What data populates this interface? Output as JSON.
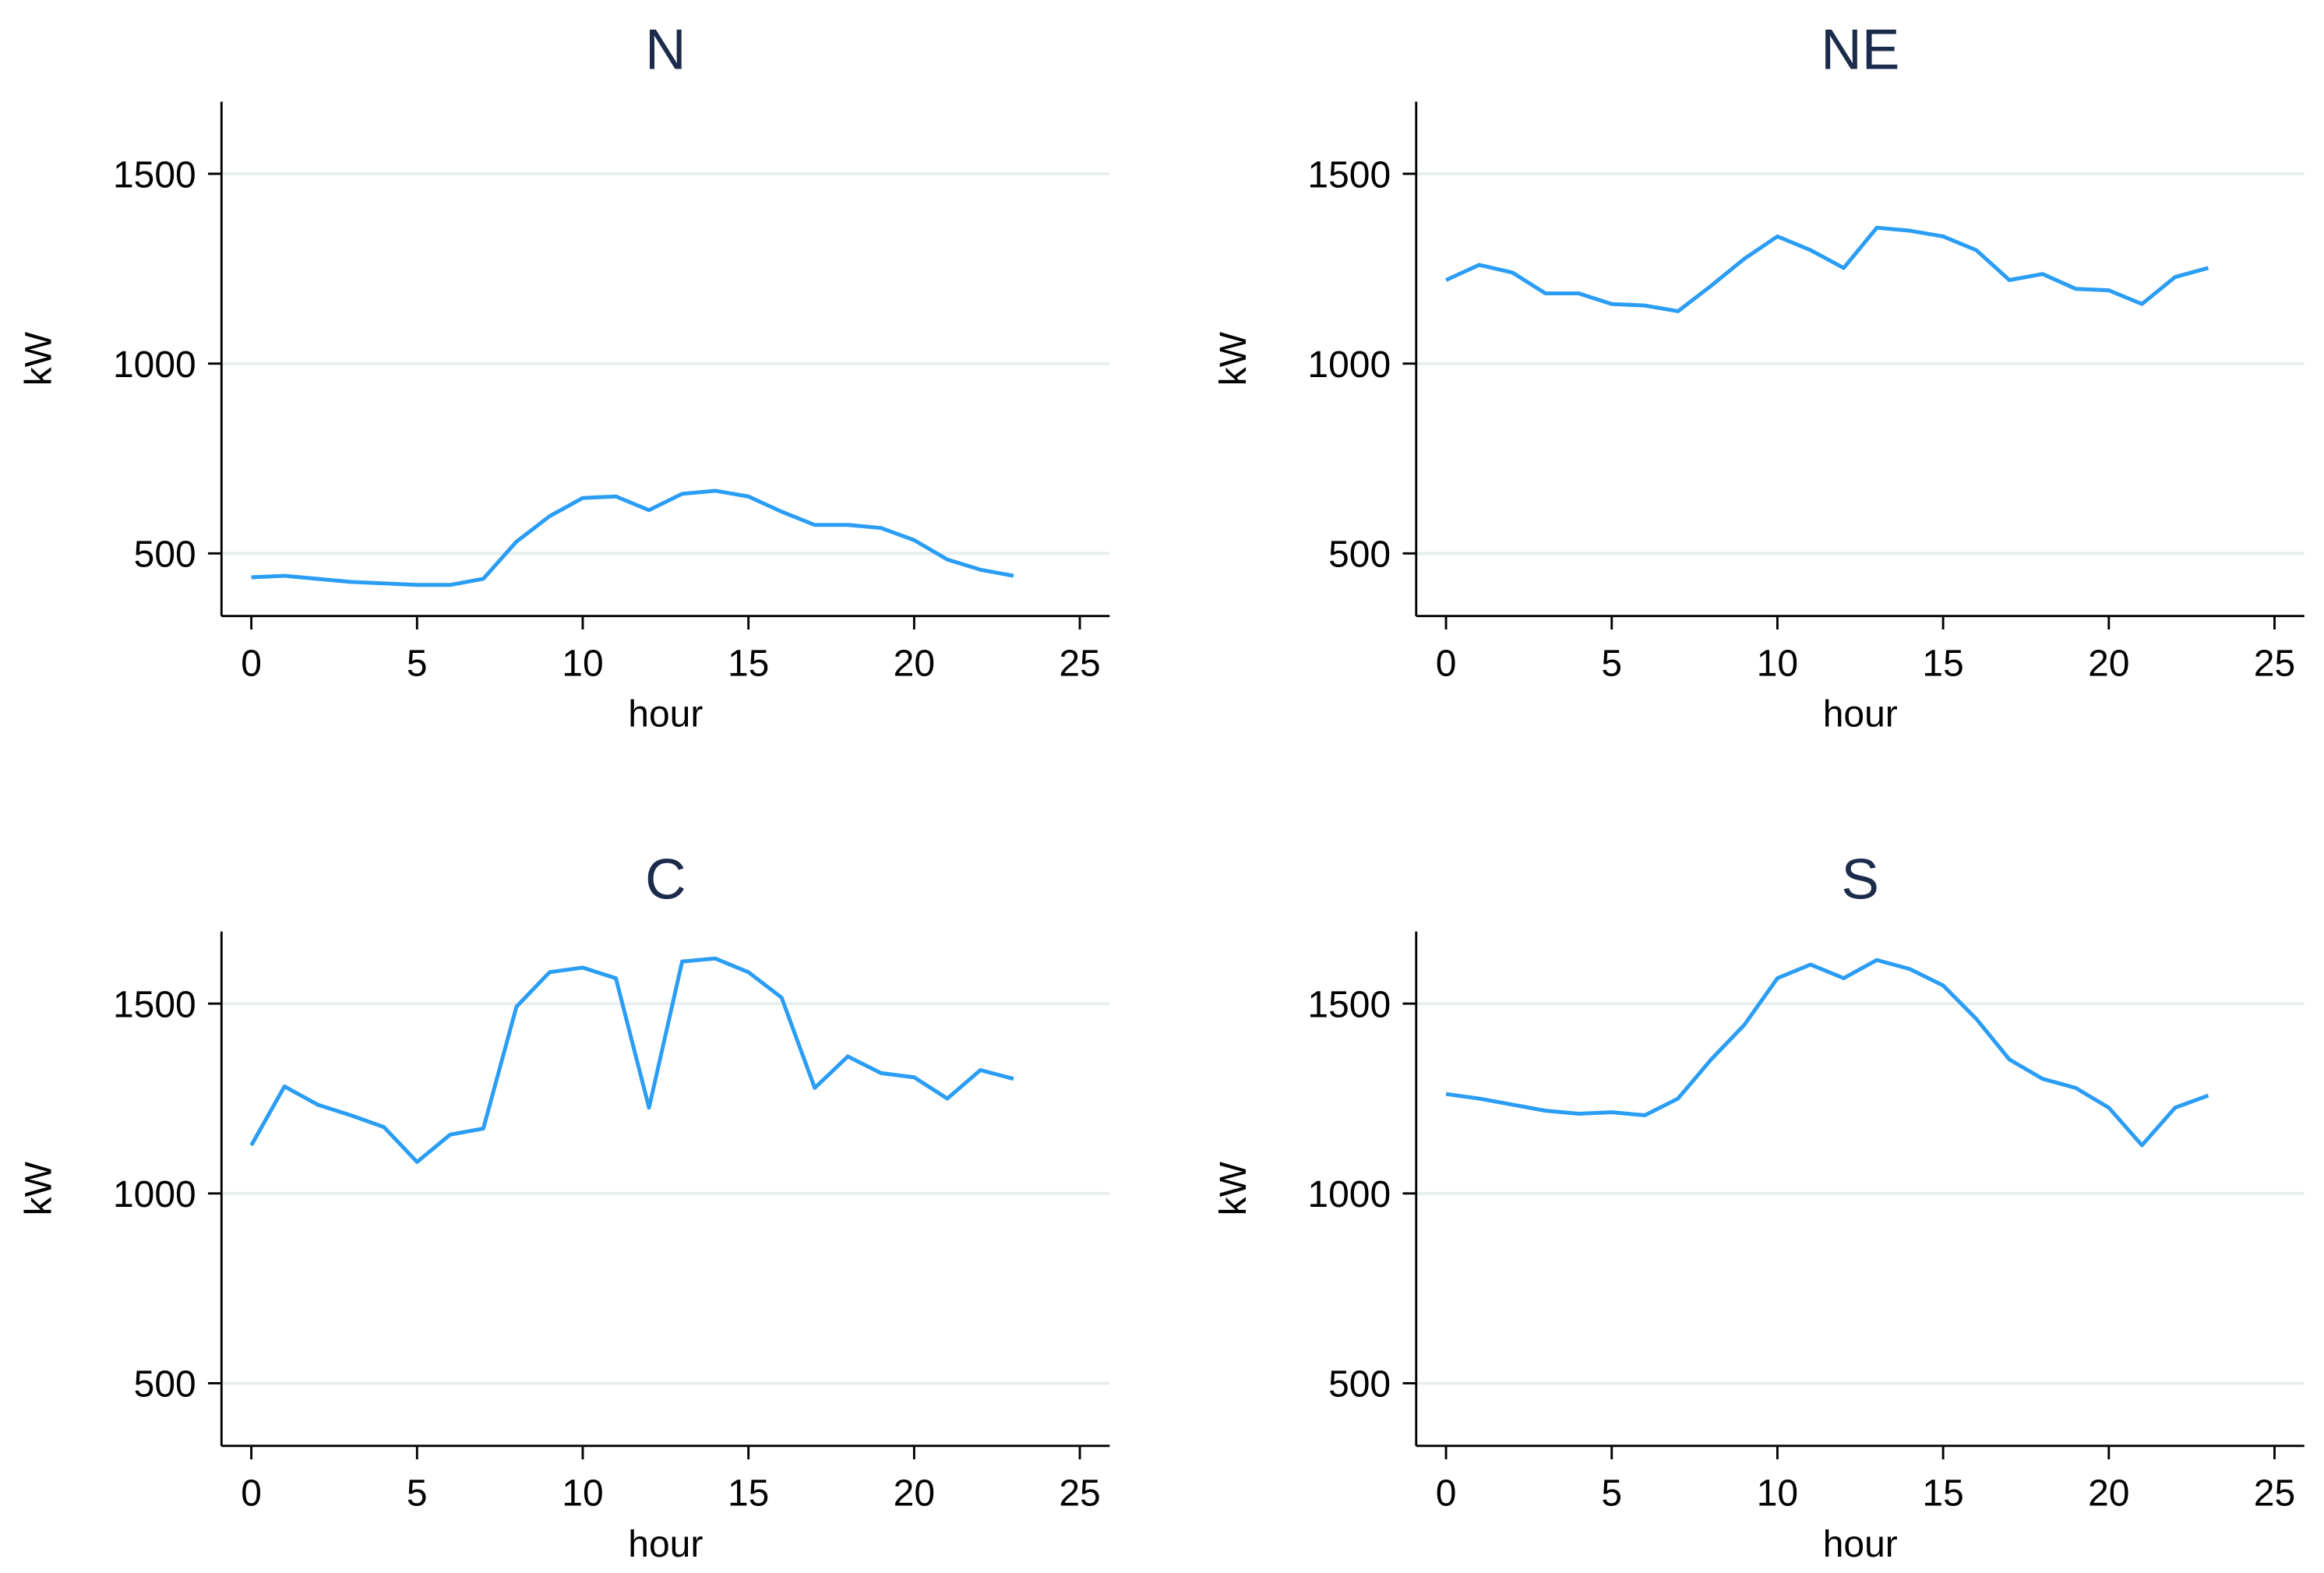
{
  "chart_data": [
    {
      "type": "line",
      "title": "N",
      "xlabel": "hour",
      "ylabel": "kW",
      "color": "#2a9df4",
      "grid": true,
      "x": [
        0,
        1,
        2,
        3,
        4,
        5,
        6,
        7,
        8,
        9,
        10,
        11,
        12,
        13,
        14,
        15,
        16,
        17,
        18,
        19,
        20,
        21,
        22,
        23
      ],
      "values": [
        437,
        441,
        433,
        425,
        421,
        417,
        417,
        433,
        531,
        598,
        646,
        650,
        614,
        657,
        665,
        650,
        610,
        575,
        575,
        567,
        535,
        484,
        457,
        441
      ],
      "xlim": [
        -0.9,
        25.9
      ],
      "xticks": [
        0,
        5,
        10,
        15,
        20,
        25
      ],
      "ylim": [
        335,
        1690
      ],
      "yticks": [
        500,
        1000,
        1500
      ]
    },
    {
      "type": "line",
      "title": "NE",
      "xlabel": "hour",
      "ylabel": "kW",
      "color": "#2a9df4",
      "grid": true,
      "x": [
        0,
        1,
        2,
        3,
        4,
        5,
        6,
        7,
        8,
        9,
        10,
        11,
        12,
        13,
        14,
        15,
        16,
        17,
        18,
        19,
        20,
        21,
        22,
        23
      ],
      "values": [
        1220,
        1260,
        1240,
        1185,
        1185,
        1157,
        1153,
        1138,
        1205,
        1276,
        1335,
        1299,
        1252,
        1358,
        1350,
        1335,
        1299,
        1220,
        1236,
        1197,
        1193,
        1157,
        1228,
        1252
      ],
      "xlim": [
        -0.9,
        25.9
      ],
      "xticks": [
        0,
        5,
        10,
        15,
        20,
        25
      ],
      "ylim": [
        335,
        1690
      ],
      "yticks": [
        500,
        1000,
        1500
      ]
    },
    {
      "type": "line",
      "title": "C",
      "xlabel": "hour",
      "ylabel": "kW",
      "color": "#2a9df4",
      "grid": true,
      "x": [
        0,
        1,
        2,
        3,
        4,
        5,
        6,
        7,
        8,
        9,
        10,
        11,
        12,
        13,
        14,
        15,
        16,
        17,
        18,
        19,
        20,
        21,
        22,
        23
      ],
      "values": [
        1127,
        1282,
        1234,
        1206,
        1175,
        1083,
        1155,
        1171,
        1492,
        1583,
        1595,
        1567,
        1226,
        1611,
        1619,
        1583,
        1516,
        1278,
        1361,
        1317,
        1306,
        1250,
        1325,
        1302
      ],
      "xlim": [
        -0.9,
        25.9
      ],
      "xticks": [
        0,
        5,
        10,
        15,
        20,
        25
      ],
      "ylim": [
        335,
        1690
      ],
      "yticks": [
        500,
        1000,
        1500
      ]
    },
    {
      "type": "line",
      "title": "S",
      "xlabel": "hour",
      "ylabel": "kW",
      "color": "#2a9df4",
      "grid": true,
      "x": [
        0,
        1,
        2,
        3,
        4,
        5,
        6,
        7,
        8,
        9,
        10,
        11,
        12,
        13,
        14,
        15,
        16,
        17,
        18,
        19,
        20,
        21,
        22,
        23
      ],
      "values": [
        1262,
        1250,
        1234,
        1218,
        1210,
        1214,
        1206,
        1250,
        1353,
        1444,
        1567,
        1603,
        1567,
        1615,
        1591,
        1548,
        1460,
        1353,
        1302,
        1278,
        1226,
        1127,
        1226,
        1258
      ],
      "xlim": [
        -0.9,
        25.9
      ],
      "xticks": [
        0,
        5,
        10,
        15,
        20,
        25
      ],
      "ylim": [
        335,
        1690
      ],
      "yticks": [
        500,
        1000,
        1500
      ]
    }
  ]
}
